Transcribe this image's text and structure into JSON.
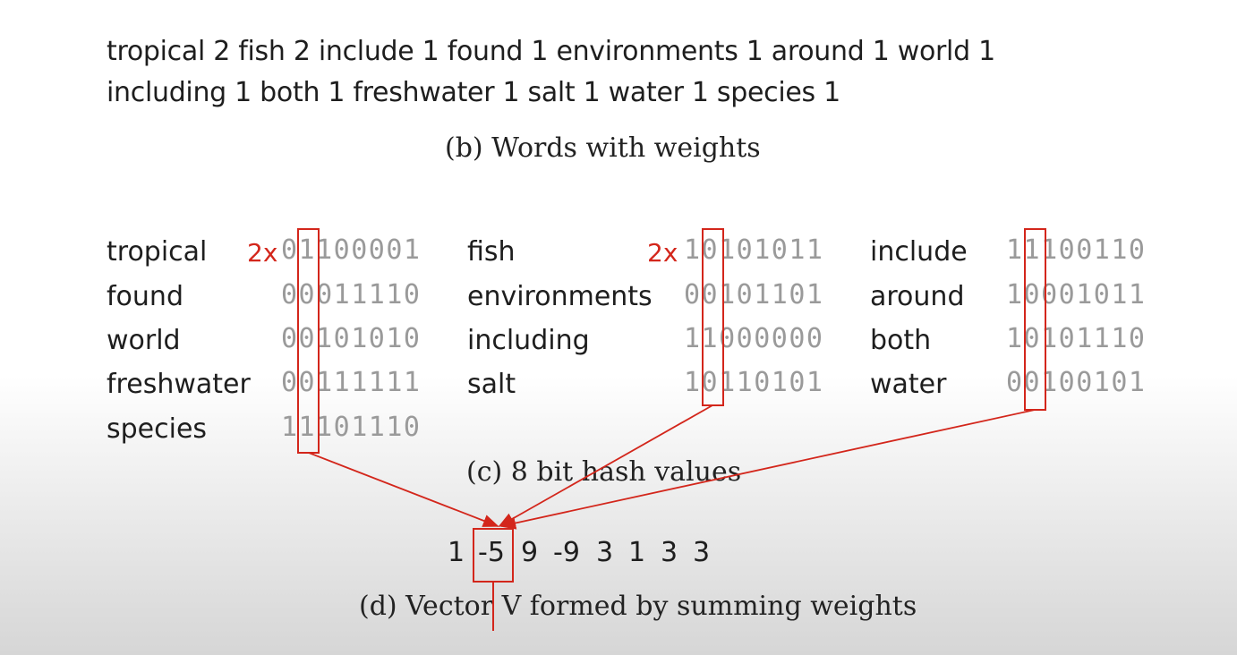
{
  "weights": {
    "line1": "tropical 2  fish 2  include 1  found 1  environments 1  around 1  world 1",
    "line2": "including 1  both 1  freshwater 1  salt 1  water 1  species 1",
    "caption": "(b) Words with weights"
  },
  "hashes": {
    "caption": "(c) 8 bit hash values",
    "rows": [
      {
        "word": "tropical",
        "multiplier": "2x",
        "bits": "01100001"
      },
      {
        "word": "fish",
        "multiplier": "2x",
        "bits": "10101011"
      },
      {
        "word": "include",
        "multiplier": "",
        "bits": "11100110"
      },
      {
        "word": "found",
        "multiplier": "",
        "bits": "00011110"
      },
      {
        "word": "environments",
        "multiplier": "",
        "bits": "00101101"
      },
      {
        "word": "around",
        "multiplier": "",
        "bits": "10001011"
      },
      {
        "word": "world",
        "multiplier": "",
        "bits": "00101010"
      },
      {
        "word": "including",
        "multiplier": "",
        "bits": "11000000"
      },
      {
        "word": "both",
        "multiplier": "",
        "bits": "10101110"
      },
      {
        "word": "freshwater",
        "multiplier": "",
        "bits": "00111111"
      },
      {
        "word": "salt",
        "multiplier": "",
        "bits": "10110101"
      },
      {
        "word": "water",
        "multiplier": "",
        "bits": "00100101"
      },
      {
        "word": "species",
        "multiplier": "",
        "bits": "11101110"
      }
    ]
  },
  "vector": {
    "values": [
      "1",
      "-5",
      "9",
      "-9",
      "3",
      "1",
      "3",
      "3"
    ],
    "caption": "(d) Vector V formed by summing weights"
  },
  "colors": {
    "highlight": "#d3261b",
    "bits": "#9a9a9a",
    "text": "#1e1e1e"
  }
}
